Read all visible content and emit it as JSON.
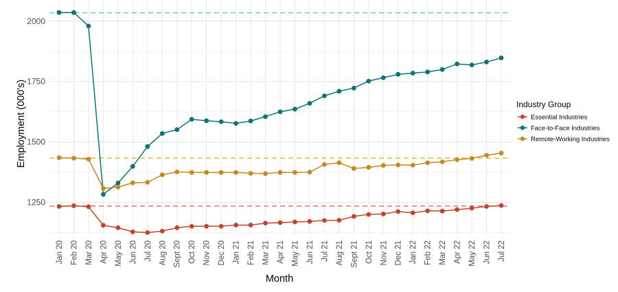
{
  "chart_data": {
    "type": "line",
    "title": "",
    "xlabel": "Month",
    "ylabel": "Employment (000's)",
    "ylim": [
      1115,
      2065
    ],
    "yticks": [
      1250,
      1500,
      1750,
      2000
    ],
    "grid": true,
    "legend_position": "right",
    "legend_title": "Industry Group",
    "categories": [
      "Jan 20",
      "Feb 20",
      "Mar 20",
      "Apr 20",
      "May 20",
      "Jun 20",
      "Jul 20",
      "Aug 20",
      "Sept 20",
      "Oct 20",
      "Nov 20",
      "Dec 20",
      "Jan 21",
      "Feb 21",
      "Mar 21",
      "Apr 21",
      "May 21",
      "Jun 21",
      "Jul 21",
      "Aug 21",
      "Sept 21",
      "Oct 21",
      "Nov 21",
      "Dec 21",
      "Jan 22",
      "Feb 22",
      "Mar 22",
      "Apr 22",
      "May 22",
      "Jun 22",
      "Jul 22"
    ],
    "series": [
      {
        "name": "Essential Industries",
        "color": "#C0452F",
        "reference": 1235,
        "values": [
          1233,
          1236,
          1232,
          1155,
          1145,
          1128,
          1125,
          1131,
          1145,
          1151,
          1151,
          1151,
          1156,
          1156,
          1164,
          1166,
          1169,
          1171,
          1175,
          1176,
          1192,
          1200,
          1202,
          1212,
          1207,
          1215,
          1214,
          1220,
          1226,
          1233,
          1237
        ]
      },
      {
        "name": "Face-to-Face Industries",
        "color": "#0F7279",
        "reference": 2035,
        "values": [
          2036,
          2036,
          1980,
          1283,
          1330,
          1399,
          1481,
          1535,
          1551,
          1594,
          1588,
          1584,
          1577,
          1587,
          1605,
          1625,
          1636,
          1660,
          1691,
          1710,
          1723,
          1752,
          1766,
          1780,
          1785,
          1790,
          1800,
          1823,
          1819,
          1831,
          1848
        ]
      },
      {
        "name": "Remote-Working Industries",
        "color": "#C48A1B",
        "reference": 1433,
        "values": [
          1435,
          1433,
          1429,
          1308,
          1313,
          1331,
          1333,
          1364,
          1376,
          1374,
          1374,
          1374,
          1374,
          1370,
          1369,
          1374,
          1374,
          1375,
          1407,
          1414,
          1390,
          1395,
          1403,
          1405,
          1404,
          1414,
          1418,
          1427,
          1432,
          1445,
          1454
        ]
      }
    ]
  }
}
